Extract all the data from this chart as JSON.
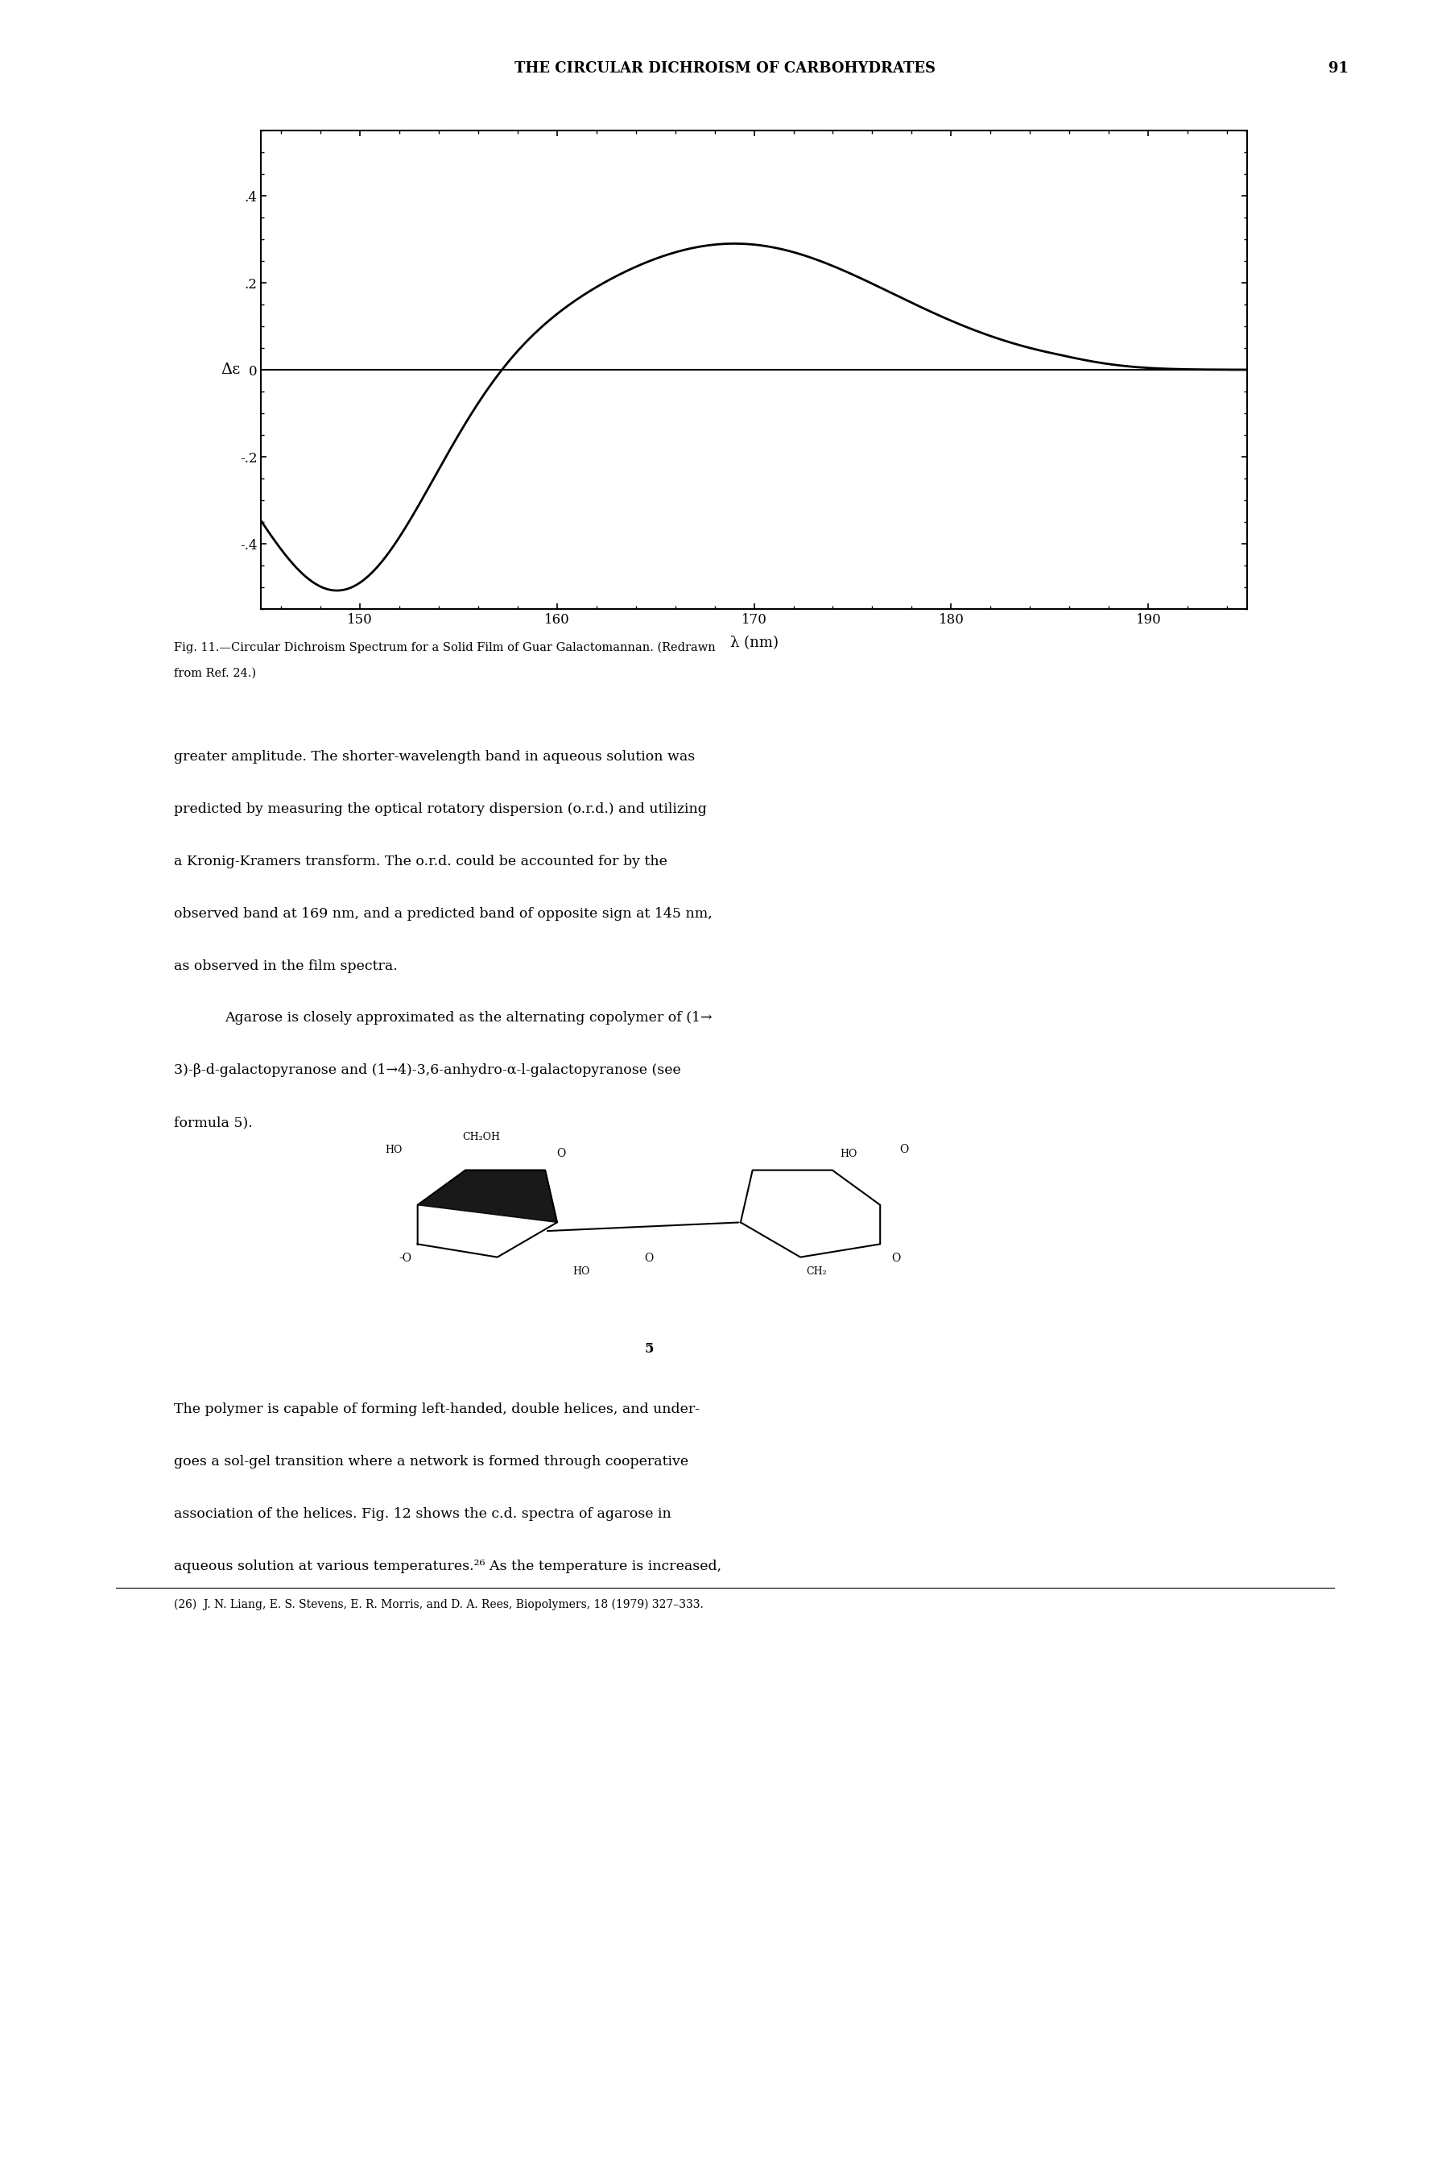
{
  "page_header": "THE CIRCULAR DICHROISM OF CARBOHYDRATES",
  "page_number": "91",
  "xlim": [
    145,
    195
  ],
  "ylim": [
    -0.55,
    0.55
  ],
  "xticks": [
    150,
    160,
    170,
    180,
    190
  ],
  "yticks": [
    -0.4,
    -0.2,
    0,
    0.2,
    0.4
  ],
  "ytick_labels": [
    "-.4",
    "-.2",
    "0",
    ".2",
    ".4"
  ],
  "xlabel": "λ (nm)",
  "ylabel": "Δε",
  "line_color": "#000000",
  "background_color": "#ffffff",
  "fig_caption_line1": "Fig. 11.—Circular Dichroism Spectrum for a Solid Film of Guar Galactomannan. (Redrawn",
  "fig_caption_line2": "from Ref. 24.)",
  "body_text": [
    "greater amplitude. The shorter-wavelength band in aqueous solution was",
    "predicted by measuring the optical rotatory dispersion (o.r.d.) and utilizing",
    "a Kronig-Kramers transform. The o.r.d. could be accounted for by the",
    "observed band at 169 nm, and a predicted band of opposite sign at 145 nm,",
    "as observed in the film spectra.",
    "\tAgarose is closely approximated as the alternating copolymer of (1→",
    "3)-β-d-galactopyranose and (1→4)-3,6-anhydro-α-l-galactopyranose (see",
    "formula 5)."
  ],
  "footnote": "(26)  J. N. Liang, E. S. Stevens, E. R. Morris, and D. A. Rees, Biopolymers, 18 (1979) 327–333."
}
